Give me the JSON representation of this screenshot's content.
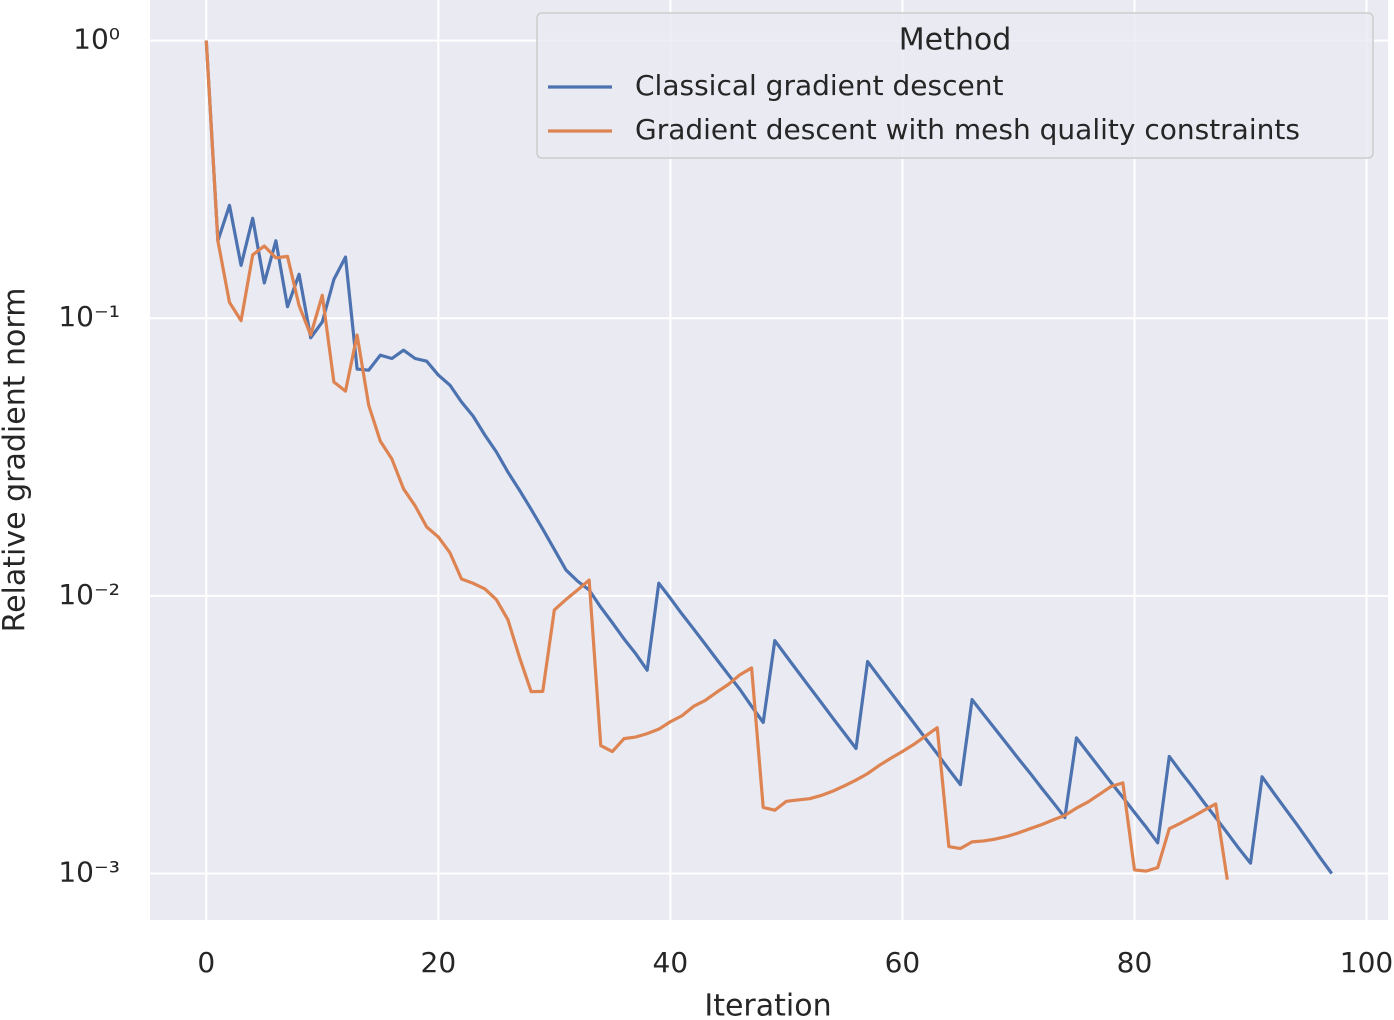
{
  "chart_data": {
    "type": "line",
    "xlabel": "Iteration",
    "ylabel": "Relative gradient norm",
    "x": [
      0,
      1,
      2,
      3,
      4,
      5,
      6,
      7,
      8,
      9,
      10,
      11,
      12,
      13,
      14,
      15,
      16,
      17,
      18,
      19,
      20,
      21,
      22,
      23,
      24,
      25,
      26,
      27,
      28,
      29,
      30,
      31,
      32,
      33,
      34,
      35,
      36,
      37,
      38,
      39,
      40,
      41,
      42,
      43,
      44,
      45,
      46,
      47,
      48,
      49,
      50,
      51,
      52,
      53,
      54,
      55,
      56,
      57,
      58,
      59,
      60,
      61,
      62,
      63,
      64,
      65,
      66,
      67,
      68,
      69,
      70,
      71,
      72,
      73,
      74,
      75,
      76,
      77,
      78,
      79,
      80,
      81,
      82,
      83,
      84,
      85,
      86,
      87,
      88,
      89,
      90,
      91,
      92,
      93,
      94,
      95,
      96,
      97
    ],
    "series": [
      {
        "name": "Classical gradient descent",
        "color": "#4c72b0",
        "values": [
          1.0,
          0.19,
          0.255,
          0.155,
          0.229,
          0.134,
          0.19,
          0.11,
          0.144,
          0.085,
          0.097,
          0.138,
          0.166,
          0.0656,
          0.065,
          0.0736,
          0.0716,
          0.0767,
          0.0716,
          0.07,
          0.0624,
          0.0574,
          0.0499,
          0.0444,
          0.038,
          0.033,
          0.0279,
          0.024,
          0.0205,
          0.0174,
          0.0147,
          0.0124,
          0.0113,
          0.0105,
          0.0091,
          0.008,
          0.007,
          0.0062,
          0.0054,
          0.0111,
          0.0098,
          0.0086,
          0.0076,
          0.0067,
          0.0059,
          0.0052,
          0.0046,
          0.004,
          0.0035,
          0.0069,
          0.00606,
          0.00533,
          0.00469,
          0.00413,
          0.00363,
          0.0032,
          0.00282,
          0.0058,
          0.0051,
          0.00449,
          0.00395,
          0.00348,
          0.00306,
          0.0027,
          0.00237,
          0.00209,
          0.00423,
          0.00374,
          0.00331,
          0.00293,
          0.00259,
          0.0023,
          0.00203,
          0.0018,
          0.00159,
          0.00308,
          0.00272,
          0.0024,
          0.00212,
          0.00188,
          0.00166,
          0.00147,
          0.00129,
          0.00264,
          0.00232,
          0.00205,
          0.0018,
          0.00159,
          0.0014,
          0.00123,
          0.00109,
          0.00223,
          0.00195,
          0.00171,
          0.0015,
          0.00131,
          0.00114,
          0.001
        ]
      },
      {
        "name": "Gradient descent with mesh quality constraints",
        "color": "#dd8452",
        "values": [
          1.0,
          0.19,
          0.114,
          0.098,
          0.169,
          0.182,
          0.165,
          0.167,
          0.111,
          0.087,
          0.121,
          0.0589,
          0.0546,
          0.087,
          0.0486,
          0.0361,
          0.0311,
          0.0243,
          0.0211,
          0.0177,
          0.0163,
          0.0143,
          0.0115,
          0.0111,
          0.0106,
          0.0097,
          0.0082,
          0.006,
          0.00452,
          0.00453,
          0.0089,
          0.0097,
          0.0105,
          0.0114,
          0.00289,
          0.00275,
          0.00306,
          0.0031,
          0.00319,
          0.00331,
          0.00352,
          0.0037,
          0.004,
          0.0042,
          0.0045,
          0.0048,
          0.0052,
          0.0055,
          0.00173,
          0.00169,
          0.00182,
          0.00184,
          0.00186,
          0.00191,
          0.00198,
          0.00207,
          0.00217,
          0.00229,
          0.00245,
          0.0026,
          0.00275,
          0.00292,
          0.00313,
          0.00335,
          0.00125,
          0.00123,
          0.0013,
          0.00131,
          0.00133,
          0.00136,
          0.0014,
          0.00145,
          0.0015,
          0.00156,
          0.00162,
          0.00172,
          0.00181,
          0.00193,
          0.00206,
          0.00212,
          0.00103,
          0.00102,
          0.00105,
          0.00145,
          0.00152,
          0.0016,
          0.00169,
          0.00178,
          0.00095,
          null,
          null,
          null,
          null,
          null,
          null,
          null,
          null,
          null
        ]
      }
    ],
    "xlim": [
      -4.85,
      101.85
    ],
    "xticks": [
      0,
      20,
      40,
      60,
      80,
      100
    ],
    "ylim": [
      1.4,
      0.00068
    ],
    "yticks": [
      {
        "value": 1,
        "label": "10⁰"
      },
      {
        "value": 0.1,
        "label": "10⁻¹"
      },
      {
        "value": 0.01,
        "label": "10⁻²"
      },
      {
        "value": 0.001,
        "label": "10⁻³"
      }
    ],
    "log_y": true,
    "grid": true,
    "legend_title": "Method",
    "legend_position": "upper right"
  }
}
